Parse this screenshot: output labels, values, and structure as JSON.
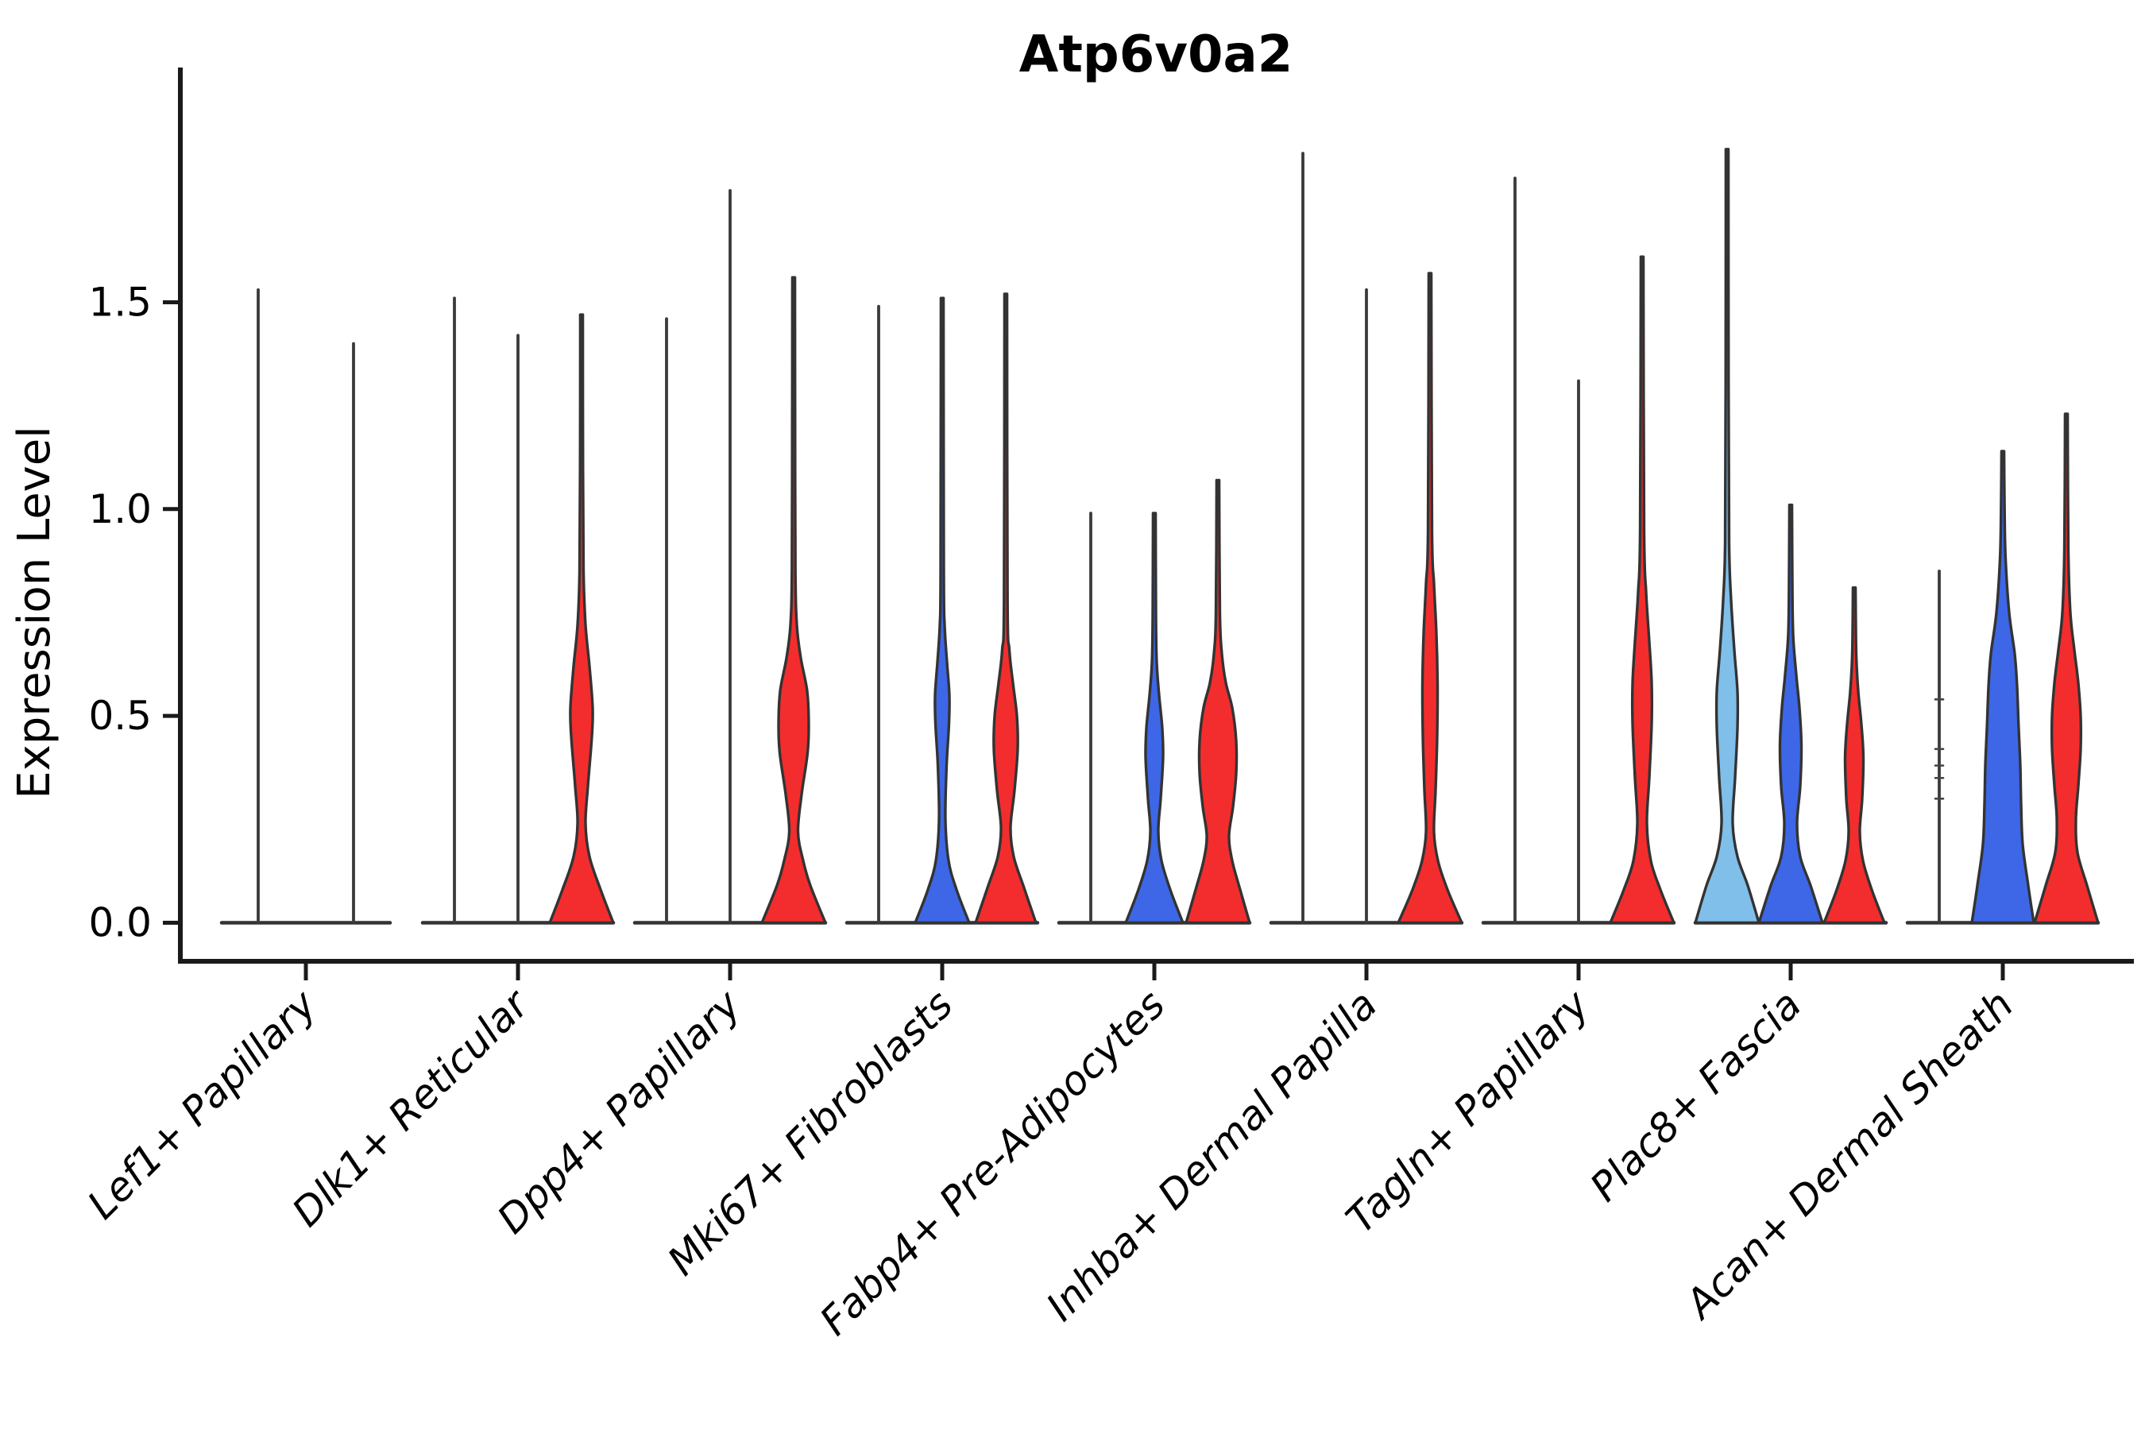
{
  "title": "Atp6v0a2",
  "y_axis": {
    "label": "Expression Level",
    "tick_labels": [
      "0.0",
      "0.5",
      "1.0",
      "1.5"
    ],
    "tick_values": [
      0,
      0.5,
      1.0,
      1.5
    ]
  },
  "colors": {
    "red": "#F32D2D",
    "blue": "#3D67E6",
    "lightblue": "#7FBFE9",
    "outline": "#333333",
    "thin_line": "#3A3A3A",
    "spine": "#1A1A1A",
    "text": "#000000",
    "background": "#FFFFFF"
  },
  "chart_data": {
    "type": "violin",
    "title": "Atp6v0a2",
    "xlabel": "",
    "ylabel": "Expression Level",
    "ylim": [
      0,
      1.95
    ],
    "grid": false,
    "legend": "none",
    "x_tick_rotation_deg": 45,
    "categories": [
      "Lef1+ Papillary",
      "Dlk1+ Reticular",
      "Dpp4+ Papillary",
      "Mki67+ Fibroblasts",
      "Fabp4+ Pre-Adipocytes",
      "Inhba+ Dermal Papilla",
      "Tagln+ Papillary",
      "Plac8+ Fascia",
      "Acan+ Dermal Sheath"
    ],
    "violin_groups": [
      {
        "label": "Lef1+ Papillary",
        "violins": [
          {
            "offset": -60,
            "style": "line",
            "color": "none",
            "max": 1.53
          },
          {
            "offset": 60,
            "style": "line",
            "color": "none",
            "max": 1.4
          }
        ]
      },
      {
        "label": "Dlk1+ Reticular",
        "violins": [
          {
            "offset": -80,
            "style": "line",
            "color": "none",
            "max": 1.51
          },
          {
            "offset": 0,
            "style": "line",
            "color": "none",
            "max": 1.42
          },
          {
            "offset": 80,
            "style": "filled",
            "color": "red",
            "max": 1.47,
            "profile": [
              [
                0,
                40
              ],
              [
                0.08,
                24
              ],
              [
                0.16,
                10
              ],
              [
                0.24,
                5
              ],
              [
                0.33,
                8
              ],
              [
                0.45,
                13
              ],
              [
                0.52,
                14
              ],
              [
                0.62,
                10
              ],
              [
                0.72,
                5
              ],
              [
                0.85,
                2.5
              ],
              [
                1.1,
                1.8
              ],
              [
                1.47,
                1.6
              ]
            ]
          }
        ]
      },
      {
        "label": "Dpp4+ Papillary",
        "violins": [
          {
            "offset": -80,
            "style": "line",
            "color": "none",
            "max": 1.46
          },
          {
            "offset": 0,
            "style": "line",
            "color": "none",
            "max": 1.77
          },
          {
            "offset": 80,
            "style": "filled",
            "color": "red",
            "max": 1.56,
            "profile": [
              [
                0,
                40
              ],
              [
                0.09,
                21
              ],
              [
                0.15,
                12
              ],
              [
                0.22,
                5.5
              ],
              [
                0.31,
                10
              ],
              [
                0.41,
                17.5
              ],
              [
                0.48,
                19
              ],
              [
                0.56,
                17
              ],
              [
                0.64,
                9
              ],
              [
                0.72,
                4
              ],
              [
                0.85,
                2.2
              ],
              [
                1.2,
                1.8
              ],
              [
                1.56,
                1.6
              ]
            ]
          }
        ]
      },
      {
        "label": "Mki67+ Fibroblasts",
        "violins": [
          {
            "offset": -80,
            "style": "line",
            "color": "none",
            "max": 1.49
          },
          {
            "offset": 0,
            "style": "filled",
            "color": "blue",
            "max": 1.51,
            "profile": [
              [
                0,
                34
              ],
              [
                0.08,
                18
              ],
              [
                0.15,
                8
              ],
              [
                0.25,
                4
              ],
              [
                0.38,
                5.5
              ],
              [
                0.48,
                8.5
              ],
              [
                0.55,
                9
              ],
              [
                0.63,
                6
              ],
              [
                0.72,
                3
              ],
              [
                0.85,
                2
              ],
              [
                1.51,
                1.6
              ]
            ]
          },
          {
            "offset": 80,
            "style": "filled",
            "color": "red",
            "max": 1.52,
            "profile": [
              [
                0,
                38
              ],
              [
                0.09,
                22
              ],
              [
                0.16,
                10
              ],
              [
                0.23,
                6
              ],
              [
                0.32,
                11
              ],
              [
                0.42,
                15
              ],
              [
                0.5,
                14
              ],
              [
                0.58,
                9
              ],
              [
                0.66,
                4.5
              ],
              [
                0.78,
                2.2
              ],
              [
                1.52,
                1.6
              ]
            ]
          }
        ]
      },
      {
        "label": "Fabp4+ Pre-Adipocytes",
        "violins": [
          {
            "offset": -80,
            "style": "line",
            "color": "none",
            "max": 0.99
          },
          {
            "offset": 0,
            "style": "filled",
            "color": "blue",
            "max": 0.99,
            "profile": [
              [
                0,
                36
              ],
              [
                0.08,
                20
              ],
              [
                0.15,
                9
              ],
              [
                0.22,
                5
              ],
              [
                0.3,
                8
              ],
              [
                0.4,
                11
              ],
              [
                0.47,
                10
              ],
              [
                0.55,
                6
              ],
              [
                0.63,
                3
              ],
              [
                0.75,
                2
              ],
              [
                0.99,
                1.6
              ]
            ]
          },
          {
            "offset": 80,
            "style": "filled",
            "color": "red",
            "max": 1.07,
            "profile": [
              [
                0,
                40
              ],
              [
                0.08,
                28
              ],
              [
                0.15,
                18
              ],
              [
                0.21,
                14
              ],
              [
                0.28,
                19
              ],
              [
                0.36,
                23
              ],
              [
                0.44,
                23
              ],
              [
                0.52,
                18
              ],
              [
                0.58,
                10
              ],
              [
                0.65,
                5
              ],
              [
                0.75,
                2.5
              ],
              [
                1.07,
                1.6
              ]
            ]
          }
        ]
      },
      {
        "label": "Inhba+ Dermal Papilla",
        "violins": [
          {
            "offset": -80,
            "style": "line",
            "color": "none",
            "max": 1.86
          },
          {
            "offset": 0,
            "style": "line",
            "color": "none",
            "max": 1.53
          },
          {
            "offset": 80,
            "style": "filled",
            "color": "red",
            "max": 1.57,
            "profile": [
              [
                0,
                40
              ],
              [
                0.08,
                22
              ],
              [
                0.15,
                10
              ],
              [
                0.22,
                5
              ],
              [
                0.32,
                7
              ],
              [
                0.45,
                9
              ],
              [
                0.58,
                9.5
              ],
              [
                0.7,
                8
              ],
              [
                0.82,
                5
              ],
              [
                0.95,
                2.5
              ],
              [
                1.57,
                1.6
              ]
            ]
          }
        ]
      },
      {
        "label": "Tagln+ Papillary",
        "violins": [
          {
            "offset": -80,
            "style": "line",
            "color": "none",
            "max": 1.8
          },
          {
            "offset": 0,
            "style": "line",
            "color": "none",
            "max": 1.31
          },
          {
            "offset": 80,
            "style": "filled",
            "color": "red",
            "max": 1.61,
            "profile": [
              [
                0,
                40
              ],
              [
                0.08,
                23
              ],
              [
                0.15,
                11
              ],
              [
                0.24,
                6
              ],
              [
                0.35,
                9
              ],
              [
                0.48,
                12
              ],
              [
                0.58,
                12
              ],
              [
                0.68,
                9
              ],
              [
                0.8,
                5
              ],
              [
                0.95,
                2.5
              ],
              [
                1.61,
                1.6
              ]
            ]
          }
        ]
      },
      {
        "label": "Plac8+ Fascia",
        "violins": [
          {
            "offset": -80,
            "style": "filled",
            "color": "lightblue",
            "max": 1.87,
            "profile": [
              [
                0,
                40
              ],
              [
                0.09,
                26
              ],
              [
                0.16,
                13
              ],
              [
                0.24,
                7
              ],
              [
                0.35,
                10
              ],
              [
                0.47,
                13
              ],
              [
                0.56,
                13
              ],
              [
                0.66,
                9
              ],
              [
                0.78,
                5
              ],
              [
                0.92,
                2.5
              ],
              [
                1.3,
                1.8
              ],
              [
                1.87,
                1.6
              ]
            ]
          },
          {
            "offset": 0,
            "style": "filled",
            "color": "blue",
            "max": 1.01,
            "profile": [
              [
                0,
                40
              ],
              [
                0.09,
                25
              ],
              [
                0.16,
                12
              ],
              [
                0.24,
                8
              ],
              [
                0.33,
                12
              ],
              [
                0.43,
                13.5
              ],
              [
                0.52,
                11
              ],
              [
                0.6,
                7
              ],
              [
                0.7,
                3
              ],
              [
                0.85,
                2
              ],
              [
                1.01,
                1.6
              ]
            ]
          },
          {
            "offset": 80,
            "style": "filled",
            "color": "red",
            "max": 0.81,
            "profile": [
              [
                0,
                38
              ],
              [
                0.08,
                22
              ],
              [
                0.15,
                11
              ],
              [
                0.22,
                7
              ],
              [
                0.3,
                10
              ],
              [
                0.4,
                11.5
              ],
              [
                0.48,
                9
              ],
              [
                0.56,
                5
              ],
              [
                0.65,
                2.5
              ],
              [
                0.81,
                1.6
              ]
            ]
          }
        ]
      },
      {
        "label": "Acan+ Dermal Sheath",
        "violins": [
          {
            "offset": -80,
            "style": "line",
            "color": "none",
            "max": 0.85,
            "point_marks": [
              0.3,
              0.35,
              0.38,
              0.42,
              0.54
            ]
          },
          {
            "offset": 0,
            "style": "filled",
            "color": "blue",
            "max": 1.14,
            "profile": [
              [
                0,
                39
              ],
              [
                0.09,
                32
              ],
              [
                0.19,
                25
              ],
              [
                0.29,
                23
              ],
              [
                0.38,
                22
              ],
              [
                0.47,
                20
              ],
              [
                0.57,
                18
              ],
              [
                0.65,
                15
              ],
              [
                0.75,
                8
              ],
              [
                0.88,
                3.5
              ],
              [
                1.0,
                2.2
              ],
              [
                1.14,
                1.6
              ]
            ]
          },
          {
            "offset": 80,
            "style": "filled",
            "color": "red",
            "max": 1.23,
            "profile": [
              [
                0,
                40
              ],
              [
                0.09,
                26
              ],
              [
                0.17,
                14
              ],
              [
                0.25,
                12
              ],
              [
                0.33,
                15
              ],
              [
                0.42,
                18
              ],
              [
                0.5,
                18
              ],
              [
                0.58,
                15
              ],
              [
                0.66,
                10
              ],
              [
                0.75,
                5
              ],
              [
                0.9,
                2.5
              ],
              [
                1.23,
                1.6
              ]
            ]
          }
        ]
      }
    ]
  }
}
